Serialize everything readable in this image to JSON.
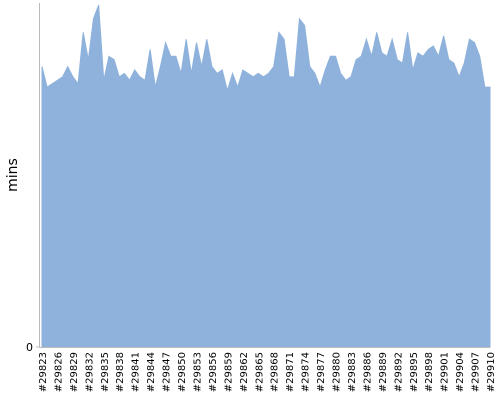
{
  "chart_data": {
    "type": "area",
    "y_label": "mins",
    "color": "#8fb2dc",
    "ylim": [
      0,
      100
    ],
    "yticks": [
      0
    ],
    "categories": [
      "#29823",
      null,
      null,
      "#29826",
      null,
      null,
      "#29829",
      null,
      null,
      "#29832",
      null,
      null,
      "#29835",
      null,
      null,
      "#29838",
      null,
      null,
      "#29841",
      null,
      null,
      "#29844",
      null,
      null,
      "#29847",
      null,
      null,
      "#29850",
      null,
      null,
      "#29853",
      null,
      null,
      "#29856",
      null,
      null,
      "#29859",
      null,
      null,
      "#29862",
      null,
      null,
      "#29865",
      null,
      null,
      "#29868",
      null,
      null,
      "#29871",
      null,
      null,
      "#29874",
      null,
      null,
      "#29877",
      null,
      null,
      "#29880",
      null,
      null,
      "#29883",
      null,
      null,
      "#29886",
      null,
      null,
      "#29889",
      null,
      null,
      "#29892",
      null,
      null,
      "#29895",
      null,
      null,
      "#29898",
      null,
      null,
      "#29901",
      null,
      null,
      "#29904",
      null,
      null,
      "#29907",
      null,
      null,
      "#29910"
    ],
    "values": [
      82,
      76,
      77,
      78,
      79,
      82,
      79,
      77,
      92,
      84,
      96,
      100,
      78,
      85,
      84,
      79,
      80,
      78,
      81,
      79,
      78,
      87,
      76,
      82,
      89,
      85,
      85,
      80,
      90,
      80,
      89,
      82,
      90,
      82,
      80,
      81,
      75,
      80,
      76,
      81,
      80,
      79,
      80,
      79,
      80,
      82,
      92,
      90,
      79,
      79,
      96,
      94,
      82,
      80,
      76,
      81,
      85,
      85,
      80,
      78,
      79,
      84,
      85,
      90,
      85,
      92,
      86,
      85,
      90,
      84,
      83,
      92,
      81,
      86,
      85,
      87,
      88,
      85,
      91,
      84,
      83,
      79,
      83,
      90,
      89,
      85,
      76,
      76
    ]
  }
}
